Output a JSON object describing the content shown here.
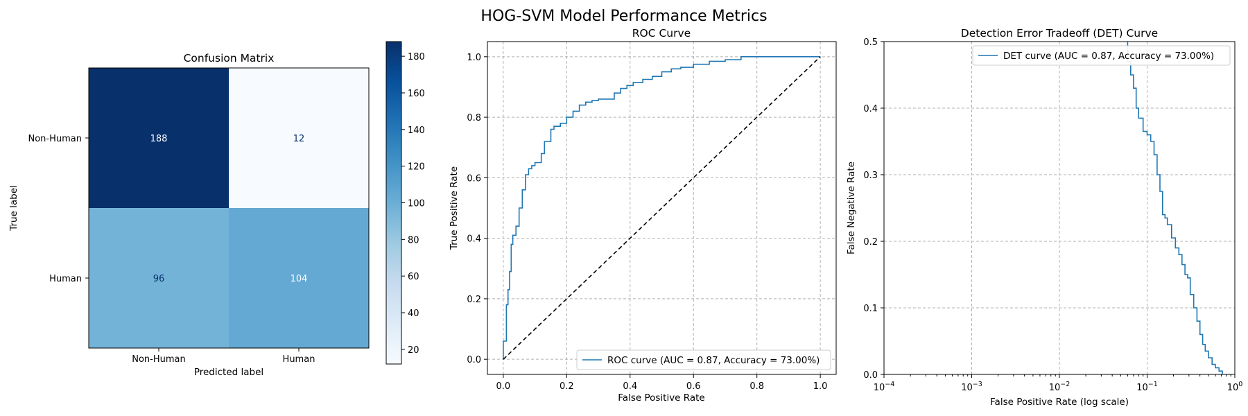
{
  "figure": {
    "title": "HOG-SVM Model Performance Metrics"
  },
  "chart_data": [
    {
      "type": "heatmap",
      "title": "Confusion Matrix",
      "xlabel": "Predicted label",
      "ylabel": "True label",
      "x_categories": [
        "Non-Human",
        "Human"
      ],
      "y_categories": [
        "Non-Human",
        "Human"
      ],
      "matrix": [
        [
          188,
          12
        ],
        [
          96,
          104
        ]
      ],
      "colormap": "Blues",
      "colorbar": {
        "range": [
          12,
          188
        ],
        "ticks": [
          20,
          40,
          60,
          80,
          100,
          120,
          140,
          160,
          180
        ]
      }
    },
    {
      "type": "line",
      "title": "ROC Curve",
      "xlabel": "False Positive Rate",
      "ylabel": "True Positive Rate",
      "xlim": [
        -0.05,
        1.05
      ],
      "ylim": [
        -0.05,
        1.05
      ],
      "xticks": [
        "0.0",
        "0.2",
        "0.4",
        "0.6",
        "0.8",
        "1.0"
      ],
      "yticks": [
        "0.0",
        "0.2",
        "0.4",
        "0.6",
        "0.8",
        "1.0"
      ],
      "grid": true,
      "legend_position": "lower-right",
      "series": [
        {
          "name": "ROC curve (AUC = 0.87, Accuracy = 73.00%)",
          "color": "#1f77b4",
          "x": [
            0,
            0,
            0.01,
            0.01,
            0.015,
            0.015,
            0.02,
            0.02,
            0.025,
            0.025,
            0.03,
            0.03,
            0.04,
            0.04,
            0.05,
            0.05,
            0.06,
            0.06,
            0.07,
            0.07,
            0.08,
            0.08,
            0.09,
            0.09,
            0.1,
            0.1,
            0.12,
            0.12,
            0.13,
            0.13,
            0.15,
            0.15,
            0.16,
            0.16,
            0.18,
            0.18,
            0.2,
            0.2,
            0.22,
            0.22,
            0.24,
            0.24,
            0.26,
            0.26,
            0.28,
            0.28,
            0.3,
            0.3,
            0.35,
            0.35,
            0.37,
            0.37,
            0.39,
            0.39,
            0.41,
            0.41,
            0.44,
            0.44,
            0.47,
            0.47,
            0.5,
            0.5,
            0.53,
            0.53,
            0.56,
            0.56,
            0.6,
            0.6,
            0.65,
            0.65,
            0.7,
            0.7,
            0.75,
            0.75,
            0.85,
            0.85,
            1.0
          ],
          "y": [
            0,
            0.06,
            0.06,
            0.18,
            0.18,
            0.23,
            0.23,
            0.29,
            0.29,
            0.38,
            0.38,
            0.41,
            0.41,
            0.44,
            0.44,
            0.5,
            0.5,
            0.56,
            0.56,
            0.61,
            0.61,
            0.63,
            0.63,
            0.64,
            0.64,
            0.65,
            0.65,
            0.68,
            0.68,
            0.72,
            0.72,
            0.76,
            0.76,
            0.77,
            0.77,
            0.78,
            0.78,
            0.8,
            0.8,
            0.82,
            0.82,
            0.84,
            0.84,
            0.85,
            0.85,
            0.855,
            0.855,
            0.86,
            0.86,
            0.88,
            0.88,
            0.895,
            0.895,
            0.905,
            0.905,
            0.915,
            0.915,
            0.925,
            0.925,
            0.935,
            0.935,
            0.95,
            0.95,
            0.96,
            0.96,
            0.965,
            0.965,
            0.975,
            0.975,
            0.985,
            0.985,
            0.99,
            0.99,
            1.0,
            1.0,
            1.0,
            1.0
          ]
        },
        {
          "name": "chance diagonal",
          "color": "#000000",
          "dashed": true,
          "x": [
            0,
            1
          ],
          "y": [
            0,
            1
          ]
        }
      ]
    },
    {
      "type": "line",
      "title": "Detection Error Tradeoff (DET) Curve",
      "xlabel": "False Positive Rate (log scale)",
      "ylabel": "False Negative Rate",
      "xscale": "log",
      "xlim": [
        0.0001,
        1
      ],
      "ylim": [
        0,
        0.5
      ],
      "xticks": [
        "10^-4",
        "10^-3",
        "10^-2",
        "10^-1",
        "10^0"
      ],
      "yticks": [
        "0.0",
        "0.1",
        "0.2",
        "0.3",
        "0.4",
        "0.5"
      ],
      "grid": true,
      "legend_position": "top-right",
      "series": [
        {
          "name": "DET curve (AUC = 0.87, Accuracy = 73.00%)",
          "color": "#1f77b4",
          "x": [
            0.06,
            0.06,
            0.065,
            0.065,
            0.07,
            0.07,
            0.075,
            0.075,
            0.08,
            0.08,
            0.09,
            0.09,
            0.1,
            0.1,
            0.11,
            0.11,
            0.12,
            0.12,
            0.13,
            0.13,
            0.14,
            0.14,
            0.15,
            0.15,
            0.16,
            0.16,
            0.17,
            0.17,
            0.19,
            0.19,
            0.21,
            0.21,
            0.23,
            0.23,
            0.25,
            0.25,
            0.27,
            0.27,
            0.29,
            0.29,
            0.31,
            0.31,
            0.34,
            0.34,
            0.37,
            0.37,
            0.4,
            0.4,
            0.43,
            0.43,
            0.46,
            0.46,
            0.5,
            0.5,
            0.55,
            0.55,
            0.6,
            0.6,
            0.66,
            0.66,
            0.72,
            0.72
          ],
          "y": [
            0.5,
            0.47,
            0.47,
            0.45,
            0.45,
            0.43,
            0.43,
            0.4,
            0.4,
            0.385,
            0.385,
            0.365,
            0.365,
            0.36,
            0.36,
            0.35,
            0.35,
            0.33,
            0.33,
            0.3,
            0.3,
            0.275,
            0.275,
            0.24,
            0.24,
            0.235,
            0.235,
            0.225,
            0.225,
            0.205,
            0.205,
            0.19,
            0.19,
            0.18,
            0.18,
            0.165,
            0.165,
            0.15,
            0.15,
            0.145,
            0.145,
            0.12,
            0.12,
            0.1,
            0.1,
            0.08,
            0.08,
            0.06,
            0.06,
            0.045,
            0.045,
            0.035,
            0.035,
            0.025,
            0.025,
            0.015,
            0.015,
            0.01,
            0.01,
            0.005,
            0.005,
            0
          ]
        }
      ]
    }
  ]
}
